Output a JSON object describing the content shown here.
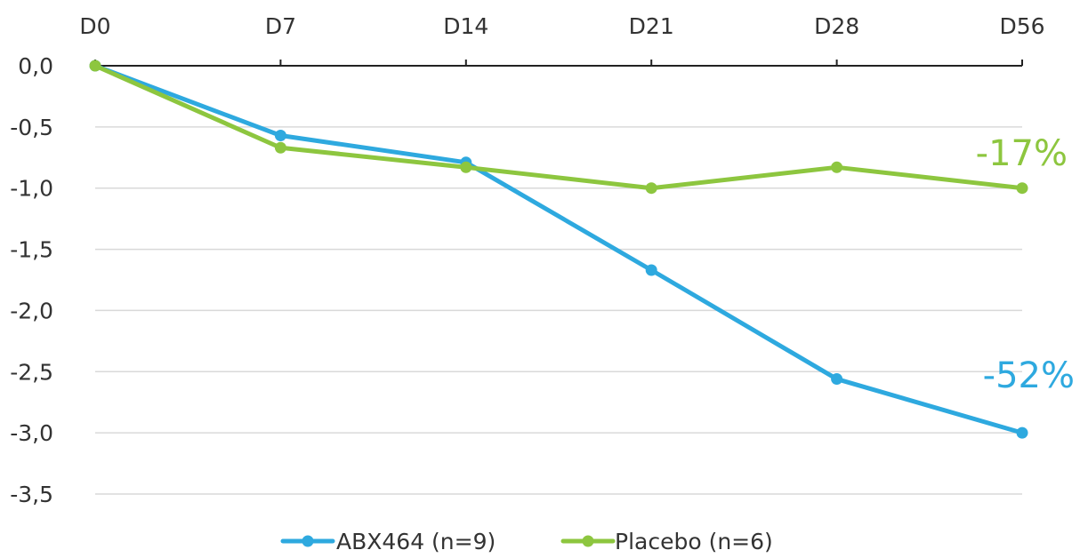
{
  "chart_data": {
    "type": "line",
    "categories": [
      "D0",
      "D7",
      "D14",
      "D21",
      "D28",
      "D56"
    ],
    "y_tick_labels": [
      "0,0",
      "-0,5",
      "-1,0",
      "-1,5",
      "-2,0",
      "-2,5",
      "-3,0",
      "-3,5"
    ],
    "y_ticks": [
      0,
      -0.5,
      -1,
      -1.5,
      -2,
      -2.5,
      -3,
      -3.5
    ],
    "ylim": [
      -3.5,
      0
    ],
    "grid": true,
    "x_axis_position": "top",
    "legend_position": "bottom",
    "series": [
      {
        "name": "ABX464 (n=9)",
        "color": "#2EA9DF",
        "values": [
          0,
          -0.57,
          -0.79,
          -1.67,
          -2.56,
          -3.0
        ],
        "end_label": "-52%"
      },
      {
        "name": "Placebo (n=6)",
        "color": "#8DC63F",
        "values": [
          0,
          -0.67,
          -0.83,
          -1.0,
          -0.83,
          -1.0
        ],
        "end_label": "-17%"
      }
    ]
  }
}
